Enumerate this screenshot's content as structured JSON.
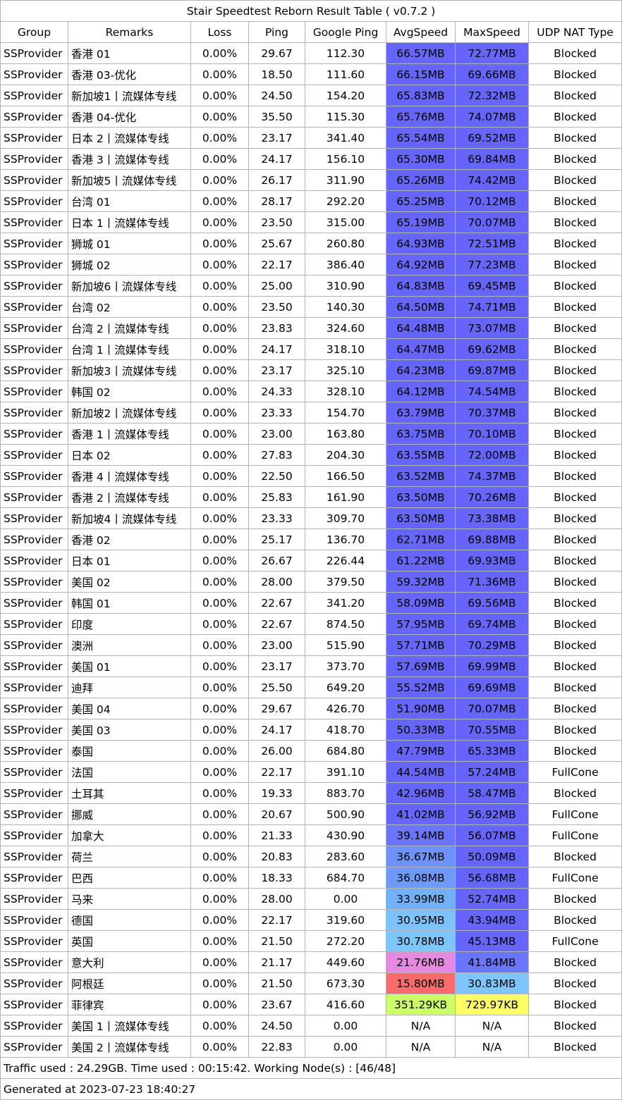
{
  "title": "Stair Speedtest Reborn Result Table ( v0.7.2 )",
  "columns": [
    "Group",
    "Remarks",
    "Loss",
    "Ping",
    "Google Ping",
    "AvgSpeed",
    "MaxSpeed",
    "UDP NAT Type"
  ],
  "rows": [
    {
      "group": "SSProvider",
      "remarks": "香港 01",
      "loss": "0.00%",
      "ping": "29.67",
      "google_ping": "112.30",
      "avg_speed": "66.57MB",
      "avg_color": "#6666ff",
      "max_speed": "72.77MB",
      "max_color": "#6666ff",
      "nat": "Blocked"
    },
    {
      "group": "SSProvider",
      "remarks": "香港 03-优化",
      "loss": "0.00%",
      "ping": "18.50",
      "google_ping": "111.60",
      "avg_speed": "66.15MB",
      "avg_color": "#6666ff",
      "max_speed": "69.66MB",
      "max_color": "#6666ff",
      "nat": "Blocked"
    },
    {
      "group": "SSProvider",
      "remarks": "新加坡1丨流媒体专线",
      "loss": "0.00%",
      "ping": "24.50",
      "google_ping": "154.20",
      "avg_speed": "65.83MB",
      "avg_color": "#6666ff",
      "max_speed": "72.32MB",
      "max_color": "#6666ff",
      "nat": "Blocked"
    },
    {
      "group": "SSProvider",
      "remarks": "香港 04-优化",
      "loss": "0.00%",
      "ping": "35.50",
      "google_ping": "115.30",
      "avg_speed": "65.76MB",
      "avg_color": "#6666ff",
      "max_speed": "74.07MB",
      "max_color": "#6666ff",
      "nat": "Blocked"
    },
    {
      "group": "SSProvider",
      "remarks": "日本 2丨流媒体专线",
      "loss": "0.00%",
      "ping": "23.17",
      "google_ping": "341.40",
      "avg_speed": "65.54MB",
      "avg_color": "#6666ff",
      "max_speed": "69.52MB",
      "max_color": "#6666ff",
      "nat": "Blocked"
    },
    {
      "group": "SSProvider",
      "remarks": "香港 3丨流媒体专线",
      "loss": "0.00%",
      "ping": "24.17",
      "google_ping": "156.10",
      "avg_speed": "65.30MB",
      "avg_color": "#6666ff",
      "max_speed": "69.84MB",
      "max_color": "#6666ff",
      "nat": "Blocked"
    },
    {
      "group": "SSProvider",
      "remarks": "新加坡5丨流媒体专线",
      "loss": "0.00%",
      "ping": "26.17",
      "google_ping": "311.90",
      "avg_speed": "65.26MB",
      "avg_color": "#6666ff",
      "max_speed": "74.42MB",
      "max_color": "#6666ff",
      "nat": "Blocked"
    },
    {
      "group": "SSProvider",
      "remarks": "台湾 01",
      "loss": "0.00%",
      "ping": "28.17",
      "google_ping": "292.20",
      "avg_speed": "65.25MB",
      "avg_color": "#6666ff",
      "max_speed": "70.12MB",
      "max_color": "#6666ff",
      "nat": "Blocked"
    },
    {
      "group": "SSProvider",
      "remarks": "日本 1丨流媒体专线",
      "loss": "0.00%",
      "ping": "23.50",
      "google_ping": "315.00",
      "avg_speed": "65.19MB",
      "avg_color": "#6666ff",
      "max_speed": "70.07MB",
      "max_color": "#6666ff",
      "nat": "Blocked"
    },
    {
      "group": "SSProvider",
      "remarks": "狮城 01",
      "loss": "0.00%",
      "ping": "25.67",
      "google_ping": "260.80",
      "avg_speed": "64.93MB",
      "avg_color": "#6666ff",
      "max_speed": "72.51MB",
      "max_color": "#6666ff",
      "nat": "Blocked"
    },
    {
      "group": "SSProvider",
      "remarks": "狮城 02",
      "loss": "0.00%",
      "ping": "22.17",
      "google_ping": "386.40",
      "avg_speed": "64.92MB",
      "avg_color": "#6666ff",
      "max_speed": "77.23MB",
      "max_color": "#6666ff",
      "nat": "Blocked"
    },
    {
      "group": "SSProvider",
      "remarks": "新加坡6丨流媒体专线",
      "loss": "0.00%",
      "ping": "25.00",
      "google_ping": "310.90",
      "avg_speed": "64.83MB",
      "avg_color": "#6666ff",
      "max_speed": "69.45MB",
      "max_color": "#6666ff",
      "nat": "Blocked"
    },
    {
      "group": "SSProvider",
      "remarks": "台湾 02",
      "loss": "0.00%",
      "ping": "23.50",
      "google_ping": "140.30",
      "avg_speed": "64.50MB",
      "avg_color": "#6666ff",
      "max_speed": "74.71MB",
      "max_color": "#6666ff",
      "nat": "Blocked"
    },
    {
      "group": "SSProvider",
      "remarks": "台湾 2丨流媒体专线",
      "loss": "0.00%",
      "ping": "23.83",
      "google_ping": "324.60",
      "avg_speed": "64.48MB",
      "avg_color": "#6666ff",
      "max_speed": "73.07MB",
      "max_color": "#6666ff",
      "nat": "Blocked"
    },
    {
      "group": "SSProvider",
      "remarks": "台湾 1丨流媒体专线",
      "loss": "0.00%",
      "ping": "24.17",
      "google_ping": "318.10",
      "avg_speed": "64.47MB",
      "avg_color": "#6666ff",
      "max_speed": "69.62MB",
      "max_color": "#6666ff",
      "nat": "Blocked"
    },
    {
      "group": "SSProvider",
      "remarks": "新加坡3丨流媒体专线",
      "loss": "0.00%",
      "ping": "23.17",
      "google_ping": "325.10",
      "avg_speed": "64.23MB",
      "avg_color": "#6666ff",
      "max_speed": "69.87MB",
      "max_color": "#6666ff",
      "nat": "Blocked"
    },
    {
      "group": "SSProvider",
      "remarks": "韩国 02",
      "loss": "0.00%",
      "ping": "24.33",
      "google_ping": "328.10",
      "avg_speed": "64.12MB",
      "avg_color": "#6666ff",
      "max_speed": "74.54MB",
      "max_color": "#6666ff",
      "nat": "Blocked"
    },
    {
      "group": "SSProvider",
      "remarks": "新加坡2丨流媒体专线",
      "loss": "0.00%",
      "ping": "23.33",
      "google_ping": "154.70",
      "avg_speed": "63.79MB",
      "avg_color": "#6666ff",
      "max_speed": "70.37MB",
      "max_color": "#6666ff",
      "nat": "Blocked"
    },
    {
      "group": "SSProvider",
      "remarks": "香港 1丨流媒体专线",
      "loss": "0.00%",
      "ping": "23.00",
      "google_ping": "163.80",
      "avg_speed": "63.75MB",
      "avg_color": "#6666ff",
      "max_speed": "70.10MB",
      "max_color": "#6666ff",
      "nat": "Blocked"
    },
    {
      "group": "SSProvider",
      "remarks": "日本 02",
      "loss": "0.00%",
      "ping": "27.83",
      "google_ping": "204.30",
      "avg_speed": "63.55MB",
      "avg_color": "#6666ff",
      "max_speed": "72.00MB",
      "max_color": "#6666ff",
      "nat": "Blocked"
    },
    {
      "group": "SSProvider",
      "remarks": "香港 4丨流媒体专线",
      "loss": "0.00%",
      "ping": "22.50",
      "google_ping": "166.50",
      "avg_speed": "63.52MB",
      "avg_color": "#6666ff",
      "max_speed": "74.37MB",
      "max_color": "#6666ff",
      "nat": "Blocked"
    },
    {
      "group": "SSProvider",
      "remarks": "香港 2丨流媒体专线",
      "loss": "0.00%",
      "ping": "25.83",
      "google_ping": "161.90",
      "avg_speed": "63.50MB",
      "avg_color": "#6666ff",
      "max_speed": "70.26MB",
      "max_color": "#6666ff",
      "nat": "Blocked"
    },
    {
      "group": "SSProvider",
      "remarks": "新加坡4丨流媒体专线",
      "loss": "0.00%",
      "ping": "23.33",
      "google_ping": "309.70",
      "avg_speed": "63.50MB",
      "avg_color": "#6666ff",
      "max_speed": "73.38MB",
      "max_color": "#6666ff",
      "nat": "Blocked"
    },
    {
      "group": "SSProvider",
      "remarks": "香港 02",
      "loss": "0.00%",
      "ping": "25.17",
      "google_ping": "136.70",
      "avg_speed": "62.71MB",
      "avg_color": "#6666ff",
      "max_speed": "69.88MB",
      "max_color": "#6666ff",
      "nat": "Blocked"
    },
    {
      "group": "SSProvider",
      "remarks": "日本 01",
      "loss": "0.00%",
      "ping": "26.67",
      "google_ping": "226.44",
      "avg_speed": "61.22MB",
      "avg_color": "#6666ff",
      "max_speed": "69.93MB",
      "max_color": "#6666ff",
      "nat": "Blocked"
    },
    {
      "group": "SSProvider",
      "remarks": "美国 02",
      "loss": "0.00%",
      "ping": "28.00",
      "google_ping": "379.50",
      "avg_speed": "59.32MB",
      "avg_color": "#6666ff",
      "max_speed": "71.36MB",
      "max_color": "#6666ff",
      "nat": "Blocked"
    },
    {
      "group": "SSProvider",
      "remarks": "韩国 01",
      "loss": "0.00%",
      "ping": "22.67",
      "google_ping": "341.20",
      "avg_speed": "58.09MB",
      "avg_color": "#6666ff",
      "max_speed": "69.56MB",
      "max_color": "#6666ff",
      "nat": "Blocked"
    },
    {
      "group": "SSProvider",
      "remarks": "印度",
      "loss": "0.00%",
      "ping": "22.67",
      "google_ping": "874.50",
      "avg_speed": "57.95MB",
      "avg_color": "#6666ff",
      "max_speed": "69.74MB",
      "max_color": "#6666ff",
      "nat": "Blocked"
    },
    {
      "group": "SSProvider",
      "remarks": "澳洲",
      "loss": "0.00%",
      "ping": "23.00",
      "google_ping": "515.90",
      "avg_speed": "57.71MB",
      "avg_color": "#6666ff",
      "max_speed": "70.29MB",
      "max_color": "#6666ff",
      "nat": "Blocked"
    },
    {
      "group": "SSProvider",
      "remarks": "美国 01",
      "loss": "0.00%",
      "ping": "23.17",
      "google_ping": "373.70",
      "avg_speed": "57.69MB",
      "avg_color": "#6666ff",
      "max_speed": "69.99MB",
      "max_color": "#6666ff",
      "nat": "Blocked"
    },
    {
      "group": "SSProvider",
      "remarks": "迪拜",
      "loss": "0.00%",
      "ping": "25.50",
      "google_ping": "649.20",
      "avg_speed": "55.52MB",
      "avg_color": "#6666ff",
      "max_speed": "69.69MB",
      "max_color": "#6666ff",
      "nat": "Blocked"
    },
    {
      "group": "SSProvider",
      "remarks": "美国 04",
      "loss": "0.00%",
      "ping": "29.67",
      "google_ping": "426.70",
      "avg_speed": "51.90MB",
      "avg_color": "#6666ff",
      "max_speed": "70.07MB",
      "max_color": "#6666ff",
      "nat": "Blocked"
    },
    {
      "group": "SSProvider",
      "remarks": "美国 03",
      "loss": "0.00%",
      "ping": "24.17",
      "google_ping": "418.70",
      "avg_speed": "50.33MB",
      "avg_color": "#6666ff",
      "max_speed": "70.55MB",
      "max_color": "#6666ff",
      "nat": "Blocked"
    },
    {
      "group": "SSProvider",
      "remarks": "泰国",
      "loss": "0.00%",
      "ping": "26.00",
      "google_ping": "684.80",
      "avg_speed": "47.79MB",
      "avg_color": "#6666ff",
      "max_speed": "65.33MB",
      "max_color": "#6666ff",
      "nat": "Blocked"
    },
    {
      "group": "SSProvider",
      "remarks": "法国",
      "loss": "0.00%",
      "ping": "22.17",
      "google_ping": "391.10",
      "avg_speed": "44.54MB",
      "avg_color": "#6666ff",
      "max_speed": "57.24MB",
      "max_color": "#6666ff",
      "nat": "FullCone"
    },
    {
      "group": "SSProvider",
      "remarks": "土耳其",
      "loss": "0.00%",
      "ping": "19.33",
      "google_ping": "883.70",
      "avg_speed": "42.96MB",
      "avg_color": "#6666ff",
      "max_speed": "58.47MB",
      "max_color": "#6666ff",
      "nat": "Blocked"
    },
    {
      "group": "SSProvider",
      "remarks": "挪威",
      "loss": "0.00%",
      "ping": "20.67",
      "google_ping": "500.90",
      "avg_speed": "41.02MB",
      "avg_color": "#6666ff",
      "max_speed": "56.92MB",
      "max_color": "#6666ff",
      "nat": "FullCone"
    },
    {
      "group": "SSProvider",
      "remarks": "加拿大",
      "loss": "0.00%",
      "ping": "21.33",
      "google_ping": "430.90",
      "avg_speed": "39.14MB",
      "avg_color": "#6a74fd",
      "max_speed": "56.07MB",
      "max_color": "#6666ff",
      "nat": "FullCone"
    },
    {
      "group": "SSProvider",
      "remarks": "荷兰",
      "loss": "0.00%",
      "ping": "20.83",
      "google_ping": "283.60",
      "avg_speed": "36.67MB",
      "avg_color": "#6d93fb",
      "max_speed": "50.09MB",
      "max_color": "#6666ff",
      "nat": "Blocked"
    },
    {
      "group": "SSProvider",
      "remarks": "巴西",
      "loss": "0.00%",
      "ping": "18.33",
      "google_ping": "684.70",
      "avg_speed": "36.08MB",
      "avg_color": "#6e9bfb",
      "max_speed": "56.68MB",
      "max_color": "#6666ff",
      "nat": "FullCone"
    },
    {
      "group": "SSProvider",
      "remarks": "马来",
      "loss": "0.00%",
      "ping": "28.00",
      "google_ping": "0.00",
      "avg_speed": "33.99MB",
      "avg_color": "#72b0fa",
      "max_speed": "52.74MB",
      "max_color": "#6666ff",
      "nat": "Blocked"
    },
    {
      "group": "SSProvider",
      "remarks": "德国",
      "loss": "0.00%",
      "ping": "22.17",
      "google_ping": "319.60",
      "avg_speed": "30.95MB",
      "avg_color": "#7dc3fb",
      "max_speed": "43.94MB",
      "max_color": "#6666ff",
      "nat": "Blocked"
    },
    {
      "group": "SSProvider",
      "remarks": "英国",
      "loss": "0.00%",
      "ping": "21.50",
      "google_ping": "272.20",
      "avg_speed": "30.78MB",
      "avg_color": "#7ec5fb",
      "max_speed": "45.13MB",
      "max_color": "#6666ff",
      "nat": "FullCone"
    },
    {
      "group": "SSProvider",
      "remarks": "意大利",
      "loss": "0.00%",
      "ping": "21.17",
      "google_ping": "449.60",
      "avg_speed": "21.76MB",
      "avg_color": "#e58ae0",
      "max_speed": "41.84MB",
      "max_color": "#6a76fd",
      "nat": "Blocked"
    },
    {
      "group": "SSProvider",
      "remarks": "阿根廷",
      "loss": "0.00%",
      "ping": "21.50",
      "google_ping": "673.30",
      "avg_speed": "15.80MB",
      "avg_color": "#fa6b6b",
      "max_speed": "30.83MB",
      "max_color": "#7ec5fb",
      "nat": "Blocked"
    },
    {
      "group": "SSProvider",
      "remarks": "菲律宾",
      "loss": "0.00%",
      "ping": "23.67",
      "google_ping": "416.60",
      "avg_speed": "351.29KB",
      "avg_color": "#ccff66",
      "max_speed": "729.97KB",
      "max_color": "#ffff66",
      "nat": "Blocked"
    },
    {
      "group": "SSProvider",
      "remarks": "美国 1丨流媒体专线",
      "loss": "0.00%",
      "ping": "24.50",
      "google_ping": "0.00",
      "avg_speed": "N/A",
      "avg_color": "#ffffff",
      "max_speed": "N/A",
      "max_color": "#ffffff",
      "nat": "Blocked"
    },
    {
      "group": "SSProvider",
      "remarks": "美国 2丨流媒体专线",
      "loss": "0.00%",
      "ping": "22.83",
      "google_ping": "0.00",
      "avg_speed": "N/A",
      "avg_color": "#ffffff",
      "max_speed": "N/A",
      "max_color": "#ffffff",
      "nat": "Blocked"
    }
  ],
  "footer": {
    "traffic": "Traffic used : 24.29GB. Time used : 00:15:42. Working Node(s) : [46/48]",
    "generated": "Generated at 2023-07-23 18:40:27"
  }
}
